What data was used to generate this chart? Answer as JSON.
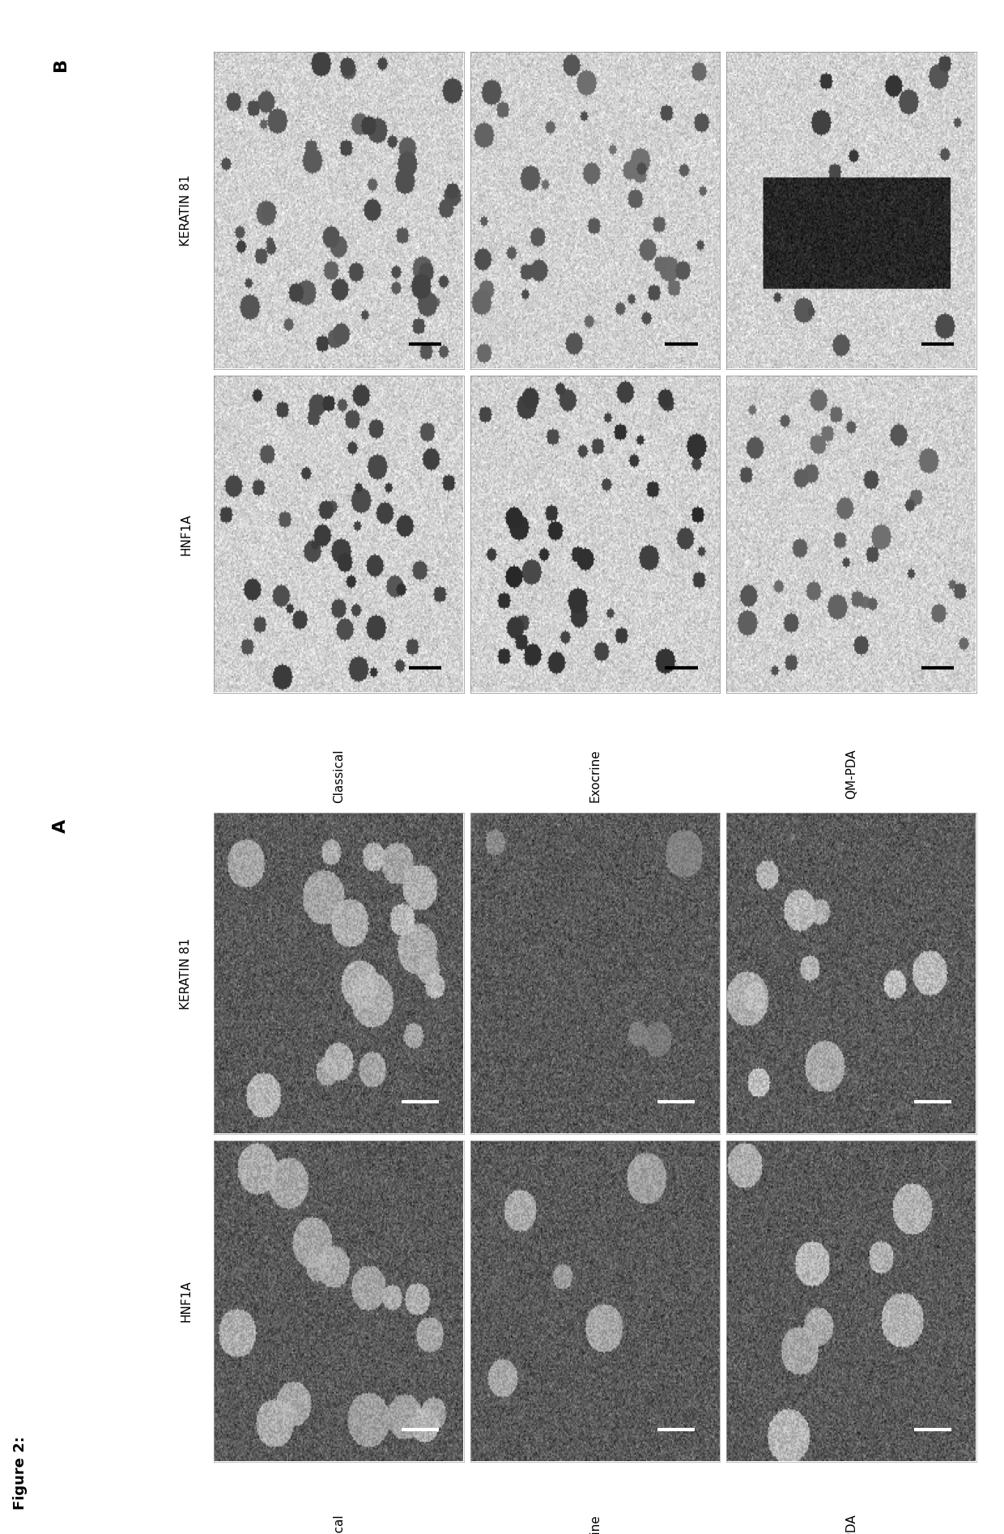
{
  "figure_title": "Figure 2:",
  "panel_A_label": "A",
  "panel_B_label": "B",
  "col_labels": [
    "KERATIN 81",
    "HNF1A"
  ],
  "row_labels": [
    "Classical",
    "Exocrine",
    "QM-PDA"
  ],
  "panel_A_bg": 0.45,
  "panel_B_bg": 0.88,
  "scale_bar_color_A": "#ffffff",
  "scale_bar_color_B": "#000000",
  "border_color_A": "#ffffff",
  "border_color_B": "#000000",
  "fig_bg": "#ffffff",
  "label_fontsize": 11,
  "title_fontsize": 13
}
